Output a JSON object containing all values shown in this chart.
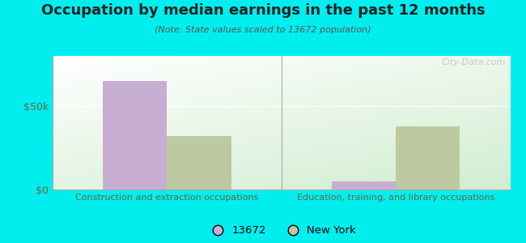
{
  "title": "Occupation by median earnings in the past 12 months",
  "subtitle": "(Note: State values scaled to 13672 population)",
  "categories": [
    "Construction and extraction occupations",
    "Education, training, and library occupations"
  ],
  "series_13672": [
    65000,
    5000
  ],
  "series_ny": [
    32000,
    38000
  ],
  "ylim": [
    0,
    80000
  ],
  "yticks": [
    0,
    50000
  ],
  "ytick_labels": [
    "$0",
    "$50k"
  ],
  "color_13672": "#c9aed4",
  "color_ny": "#bdc9a0",
  "legend_13672": "13672",
  "legend_ny": "New York",
  "bg_color": "#00eeee",
  "watermark": "City-Data.com",
  "bar_width": 0.28,
  "title_fontsize": 13,
  "subtitle_fontsize": 8
}
